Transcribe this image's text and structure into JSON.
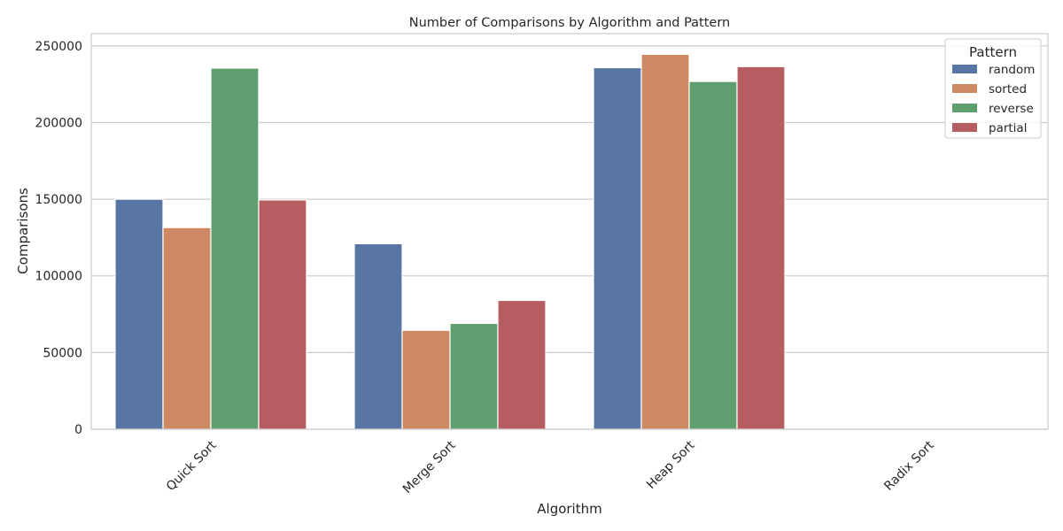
{
  "chart_data": {
    "type": "bar",
    "title": "Number of Comparisons by Algorithm and Pattern",
    "xlabel": "Algorithm",
    "ylabel": "Comparisons",
    "categories": [
      "Quick Sort",
      "Merge Sort",
      "Heap Sort",
      "Radix Sort"
    ],
    "series": [
      {
        "name": "random",
        "color": "#5875a4",
        "values": [
          150000,
          121000,
          235800,
          0
        ]
      },
      {
        "name": "sorted",
        "color": "#cc8963",
        "values": [
          131500,
          64500,
          244500,
          0
        ]
      },
      {
        "name": "reverse",
        "color": "#5f9e6e",
        "values": [
          235500,
          69000,
          226800,
          0
        ]
      },
      {
        "name": "partial",
        "color": "#b55d60",
        "values": [
          149500,
          84000,
          236500,
          0
        ]
      }
    ],
    "ylim": [
      0,
      258000
    ],
    "yticks": [
      0,
      50000,
      100000,
      150000,
      200000,
      250000
    ],
    "grid": true,
    "legend": {
      "title": "Pattern",
      "placement": "top-right"
    }
  }
}
